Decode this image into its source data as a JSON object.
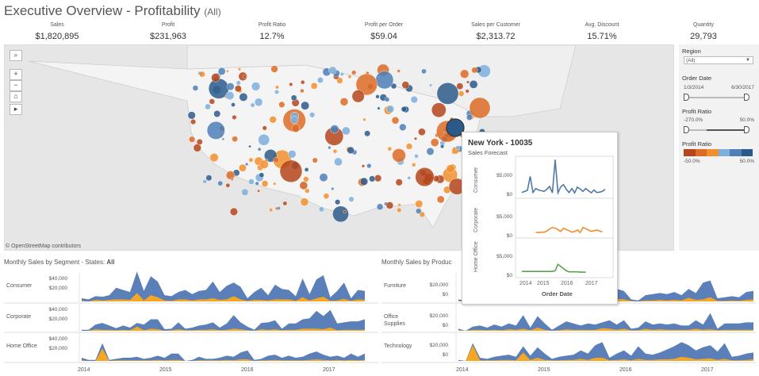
{
  "header": {
    "title": "Executive Overview - Profitability",
    "filter": "(All)"
  },
  "kpis": [
    {
      "label": "Sales",
      "value": "$1,820,895"
    },
    {
      "label": "Profit",
      "value": "$231,963"
    },
    {
      "label": "Profit Ratio",
      "value": "12.7%"
    },
    {
      "label": "Profit per Order",
      "value": "$59.04"
    },
    {
      "label": "Sales per Customer",
      "value": "$2,313.72"
    },
    {
      "label": "Avg. Discount",
      "value": "15.71%"
    },
    {
      "label": "Quantity",
      "value": "29,793"
    }
  ],
  "map": {
    "attribution": "© OpenStreetMap contributors",
    "controls": [
      "search-icon",
      "zoom-in-icon",
      "zoom-out-icon",
      "home-icon",
      "play-icon"
    ],
    "controls_text": [
      "⌕",
      "+",
      "−",
      "⌂",
      "▸"
    ],
    "colors": [
      "#b5451b",
      "#dd6b26",
      "#f28e2b",
      "#7eaedb",
      "#4e7fb6",
      "#2b5a8a"
    ]
  },
  "filters": {
    "region_label": "Region",
    "region_value": "(All)",
    "order_date_label": "Order Date",
    "order_date_start": "1/3/2014",
    "order_date_end": "6/30/2017",
    "profit_ratio_label": "Profit Ratio",
    "profit_ratio_min": "-270.0%",
    "profit_ratio_max": "50.0%",
    "legend_label": "Profit Ratio",
    "legend_min": "-50.0%",
    "legend_max": "50.0%",
    "legend_colors": [
      "#b5451b",
      "#dd6b26",
      "#f28e2b",
      "#7eaedb",
      "#4e7fb6",
      "#2b5a8a"
    ]
  },
  "segment_chart": {
    "title": "Monthly Sales by Segment - States: ",
    "title_bold": "All",
    "rows": [
      {
        "label": "Consumer",
        "ticks": [
          "$40,000",
          "$20,000"
        ],
        "sales": [
          6,
          4,
          10,
          9,
          12,
          26,
          22,
          18,
          57,
          20,
          48,
          38,
          12,
          10,
          18,
          22,
          14,
          20,
          22,
          38,
          18,
          30,
          36,
          28,
          6,
          18,
          26,
          12,
          32,
          24,
          22,
          10,
          44,
          14,
          42,
          50,
          8,
          20,
          36,
          6,
          22,
          20
        ],
        "profit": [
          1,
          0,
          3,
          2,
          3,
          4,
          4,
          3,
          16,
          2,
          12,
          8,
          2,
          1,
          4,
          4,
          2,
          4,
          4,
          6,
          3,
          4,
          10,
          4,
          1,
          3,
          3,
          2,
          4,
          4,
          4,
          1,
          8,
          2,
          6,
          9,
          1,
          2,
          5,
          1,
          4,
          3
        ]
      },
      {
        "label": "Corporate",
        "ticks": [
          "$40,000",
          "$20,000"
        ],
        "sales": [
          2,
          2,
          12,
          15,
          10,
          5,
          10,
          6,
          15,
          12,
          22,
          22,
          3,
          4,
          16,
          4,
          6,
          10,
          12,
          16,
          6,
          14,
          30,
          16,
          8,
          2,
          15,
          16,
          20,
          4,
          14,
          14,
          22,
          24,
          38,
          28,
          40,
          14,
          16,
          18,
          18,
          22
        ],
        "profit": [
          0,
          0,
          3,
          2,
          2,
          1,
          2,
          1,
          8,
          1,
          4,
          3,
          0,
          1,
          3,
          1,
          1,
          2,
          2,
          3,
          1,
          2,
          4,
          3,
          1,
          0,
          3,
          2,
          3,
          1,
          2,
          2,
          4,
          4,
          4,
          3,
          6,
          1,
          2,
          2,
          2,
          2
        ]
      },
      {
        "label": "Home Office",
        "ticks": [
          "$40,000",
          "$20,000"
        ],
        "sales": [
          6,
          2,
          2,
          34,
          2,
          4,
          6,
          6,
          8,
          4,
          6,
          10,
          6,
          14,
          14,
          0,
          2,
          8,
          4,
          4,
          6,
          10,
          8,
          16,
          20,
          2,
          4,
          10,
          12,
          6,
          10,
          6,
          8,
          14,
          18,
          12,
          8,
          10,
          6,
          14,
          8,
          14
        ],
        "profit": [
          1,
          0,
          0,
          24,
          0,
          1,
          1,
          1,
          1,
          1,
          1,
          2,
          1,
          2,
          2,
          0,
          0,
          1,
          1,
          1,
          1,
          2,
          1,
          3,
          3,
          0,
          1,
          1,
          2,
          1,
          1,
          1,
          1,
          2,
          3,
          2,
          1,
          2,
          1,
          2,
          1,
          2
        ]
      }
    ],
    "years": [
      "2014",
      "2015",
      "2016",
      "2017"
    ]
  },
  "category_chart": {
    "title": "Monthly Sales by Product Category - States: All",
    "title_visible": "Monthly Sales by Produc",
    "rows": [
      {
        "label": "Furniture",
        "ticks": [
          "$20,000",
          "$0"
        ],
        "sales": [
          4,
          2,
          6,
          8,
          10,
          12,
          8,
          10,
          14,
          12,
          16,
          18,
          4,
          6,
          10,
          12,
          14,
          16,
          18,
          20,
          22,
          18,
          24,
          20,
          4,
          2,
          12,
          14,
          16,
          14,
          18,
          12,
          24,
          16,
          36,
          40,
          6,
          8,
          10,
          8,
          18,
          20
        ],
        "profit": [
          1,
          0,
          1,
          1,
          2,
          2,
          1,
          2,
          3,
          2,
          3,
          3,
          1,
          1,
          2,
          2,
          2,
          3,
          3,
          3,
          4,
          3,
          5,
          4,
          1,
          0,
          2,
          2,
          3,
          2,
          3,
          2,
          7,
          3,
          4,
          8,
          1,
          1,
          2,
          1,
          3,
          4
        ]
      },
      {
        "label": "Office Supplies",
        "ticks": [
          "$20,000"
        ],
        "tick0": "$0",
        "sales": [
          4,
          0,
          8,
          10,
          6,
          12,
          8,
          14,
          10,
          30,
          6,
          28,
          14,
          2,
          10,
          18,
          14,
          10,
          14,
          12,
          16,
          20,
          12,
          20,
          4,
          6,
          18,
          12,
          14,
          12,
          14,
          10,
          10,
          20,
          12,
          34,
          4,
          14,
          14,
          14,
          16,
          16
        ],
        "profit": [
          1,
          0,
          2,
          2,
          1,
          2,
          1,
          3,
          2,
          4,
          1,
          6,
          2,
          0,
          1,
          3,
          2,
          2,
          2,
          2,
          5,
          4,
          2,
          4,
          1,
          1,
          4,
          2,
          3,
          2,
          2,
          2,
          2,
          4,
          2,
          3,
          1,
          2,
          2,
          2,
          2,
          2
        ]
      },
      {
        "label": "Technology",
        "ticks": [
          "$20,000",
          "$0"
        ],
        "sales": [
          2,
          0,
          34,
          6,
          4,
          8,
          10,
          12,
          8,
          28,
          10,
          26,
          14,
          4,
          8,
          10,
          12,
          20,
          14,
          30,
          36,
          6,
          14,
          20,
          10,
          28,
          14,
          12,
          16,
          22,
          28,
          36,
          30,
          20,
          26,
          30,
          18,
          34,
          8,
          10,
          14,
          16
        ],
        "profit": [
          0,
          0,
          30,
          1,
          1,
          1,
          2,
          2,
          1,
          16,
          2,
          6,
          2,
          1,
          1,
          2,
          2,
          4,
          2,
          6,
          6,
          1,
          2,
          3,
          1,
          4,
          2,
          2,
          3,
          3,
          4,
          8,
          6,
          3,
          4,
          5,
          2,
          4,
          1,
          1,
          2,
          3
        ]
      }
    ],
    "years": [
      "2014",
      "2015",
      "2016",
      "2017"
    ]
  },
  "tooltip": {
    "title": "New York - 10035",
    "subtitle": "Sales Forecast",
    "xlabel": "Order Date",
    "years": [
      "2014",
      "2015",
      "2016",
      "2017"
    ],
    "rows": [
      {
        "label": "Consumer",
        "ticks": [
          "$5,000",
          "$0"
        ],
        "color": "#4e79a7",
        "values": [
          300,
          600,
          900,
          4800,
          300,
          1400,
          1000,
          800,
          600,
          1200,
          2000,
          200,
          9500,
          200,
          1900,
          2500,
          1200,
          300,
          1400,
          200,
          1800,
          1300,
          600,
          1400,
          800,
          200,
          1000,
          300,
          400,
          600,
          1200
        ]
      },
      {
        "label": "Corporate",
        "ticks": [
          "$5,000",
          "$0"
        ],
        "color": "#f28e2b",
        "values": [
          null,
          null,
          200,
          200,
          300,
          300,
          600,
          1200,
          1600,
          1400,
          1000,
          500,
          1400,
          1000,
          700,
          300,
          500,
          900,
          200,
          1600,
          1300,
          900,
          500,
          700,
          900,
          600,
          400
        ]
      },
      {
        "label": "Home Office",
        "ticks": [
          "$5,000",
          "$0"
        ],
        "color": "#59a14f",
        "values": [
          400,
          400,
          400,
          400,
          400,
          400,
          400,
          400,
          400,
          400,
          400,
          400,
          600,
          2400,
          1800,
          1200,
          600,
          300,
          300,
          300,
          300,
          200,
          200,
          200
        ]
      }
    ]
  }
}
